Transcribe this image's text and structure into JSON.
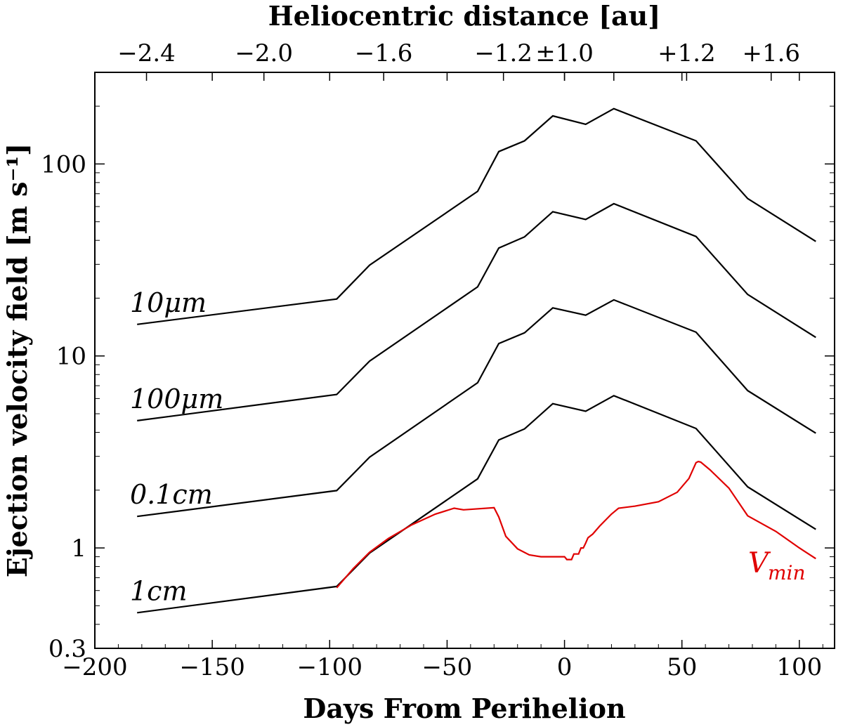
{
  "chart_data": {
    "type": "line",
    "xlabel": "Days From Perihelion",
    "ylabel": "Ejection velocity field [m s⁻¹]",
    "top_xlabel": "Heliocentric distance [au]",
    "xlim": [
      -200,
      115
    ],
    "ylim": [
      0.3,
      300
    ],
    "yscale": "log",
    "x_ticks": [
      -200,
      -150,
      -100,
      -50,
      0,
      50,
      100
    ],
    "x_tick_labels": [
      "−200",
      "−150",
      "−100",
      "−50",
      "0",
      "50",
      "100"
    ],
    "y_ticks": [
      0.3,
      1,
      10,
      100
    ],
    "y_tick_labels": [
      "0.3",
      "1",
      "10",
      "100"
    ],
    "top_ticks": [
      -178,
      -128,
      -77,
      -26,
      0,
      21,
      52,
      88
    ],
    "top_tick_labels": [
      "−2.4",
      "−2.0",
      "−1.6",
      "−1.2",
      "±1.0",
      "",
      "+1.2",
      "+1.6"
    ],
    "x": [
      -182,
      -97,
      -83,
      -37,
      -28,
      -17,
      -5,
      9,
      21,
      56,
      78,
      107
    ],
    "series": [
      {
        "name": "10μm",
        "label": "10μm",
        "color": "#000000",
        "values": [
          14.6,
          19.8,
          29.7,
          72,
          116,
          132,
          178,
          161,
          194,
          132,
          66,
          39.5
        ]
      },
      {
        "name": "100μm",
        "label": "100μm",
        "color": "#000000",
        "values": [
          4.6,
          6.3,
          9.4,
          22.9,
          36.5,
          41.7,
          56.4,
          51.4,
          62.1,
          41.9,
          20.9,
          12.5
        ]
      },
      {
        "name": "0.1cm",
        "label": "0.1cm",
        "color": "#000000",
        "values": [
          1.46,
          1.99,
          2.97,
          7.25,
          11.6,
          13.2,
          17.8,
          16.3,
          19.6,
          13.3,
          6.6,
          3.96
        ]
      },
      {
        "name": "1cm",
        "label": "1cm",
        "color": "#000000",
        "values": [
          0.46,
          0.63,
          0.94,
          2.29,
          3.65,
          4.17,
          5.64,
          5.15,
          6.21,
          4.19,
          2.08,
          1.25
        ]
      }
    ],
    "vmin": {
      "name": "Vmin",
      "label": "V",
      "subscript": "min",
      "color": "#e00000",
      "x": [
        -97,
        -90,
        -83,
        -75,
        -65,
        -55,
        -47,
        -43,
        -30,
        -28,
        -25,
        -20,
        -15,
        -10,
        -5,
        0,
        1,
        3,
        4,
        6,
        7,
        8,
        9,
        10,
        12,
        15,
        20,
        23,
        30,
        40,
        48,
        53,
        56,
        57,
        58,
        62,
        70,
        78,
        90,
        100,
        107
      ],
      "values": [
        0.62,
        0.78,
        0.95,
        1.12,
        1.32,
        1.5,
        1.61,
        1.58,
        1.62,
        1.45,
        1.15,
        0.99,
        0.92,
        0.9,
        0.9,
        0.9,
        0.87,
        0.87,
        0.93,
        0.93,
        1.0,
        1.0,
        1.06,
        1.13,
        1.18,
        1.3,
        1.5,
        1.61,
        1.65,
        1.74,
        1.95,
        2.3,
        2.78,
        2.82,
        2.8,
        2.55,
        2.05,
        1.47,
        1.22,
        1.0,
        0.88
      ]
    }
  }
}
